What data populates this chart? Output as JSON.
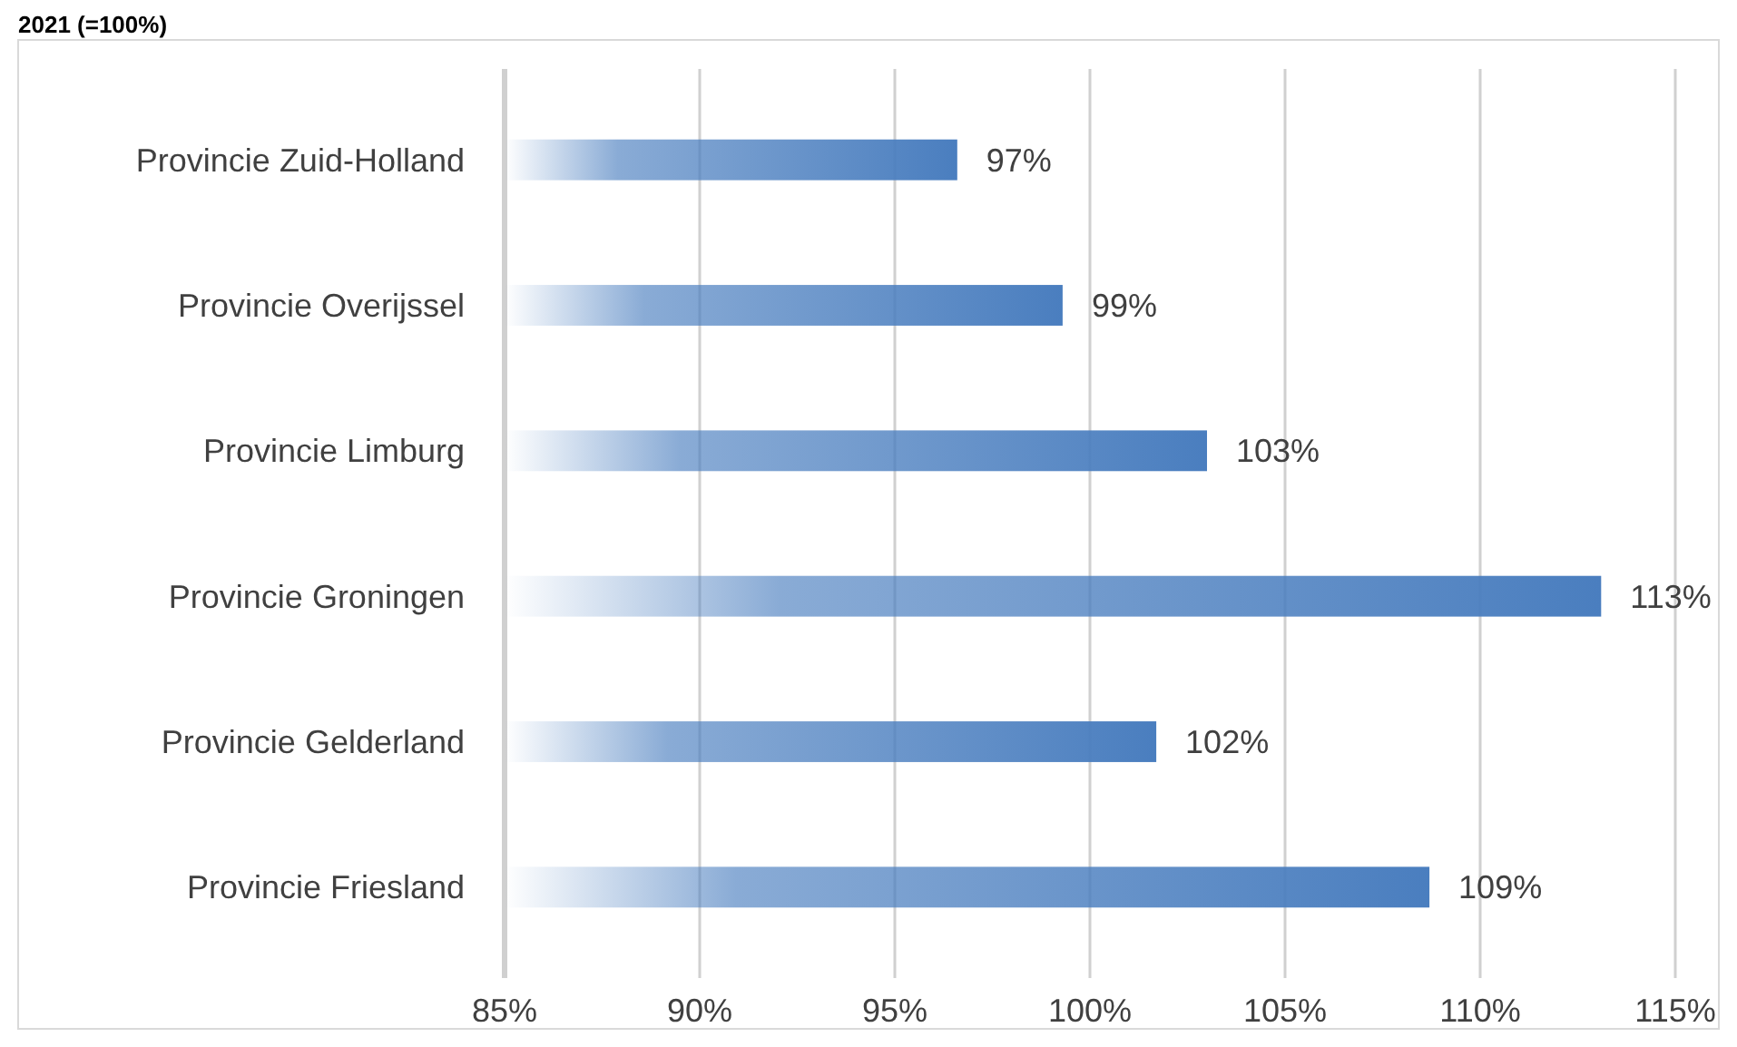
{
  "chart_data": {
    "type": "bar",
    "orientation": "horizontal",
    "title": "2021 (=100%)",
    "categories": [
      "Provincie Zuid-Holland",
      "Provincie Overijssel",
      "Provincie Limburg",
      "Provincie Groningen",
      "Provincie Gelderland",
      "Provincie Friesland"
    ],
    "values": [
      96.6,
      99.3,
      103.0,
      113.1,
      101.7,
      108.7
    ],
    "value_labels": [
      "97%",
      "99%",
      "103%",
      "113%",
      "102%",
      "109%"
    ],
    "color": "#4a7ebf",
    "xlim": [
      85,
      115
    ],
    "xticks": [
      {
        "value": 85,
        "label": "85%"
      },
      {
        "value": 90,
        "label": "90%"
      },
      {
        "value": 95,
        "label": "95%"
      },
      {
        "value": 100,
        "label": "100%"
      },
      {
        "value": 105,
        "label": "105%"
      },
      {
        "value": 110,
        "label": "110%"
      },
      {
        "value": 115,
        "label": "115%"
      }
    ],
    "grid": "x"
  }
}
